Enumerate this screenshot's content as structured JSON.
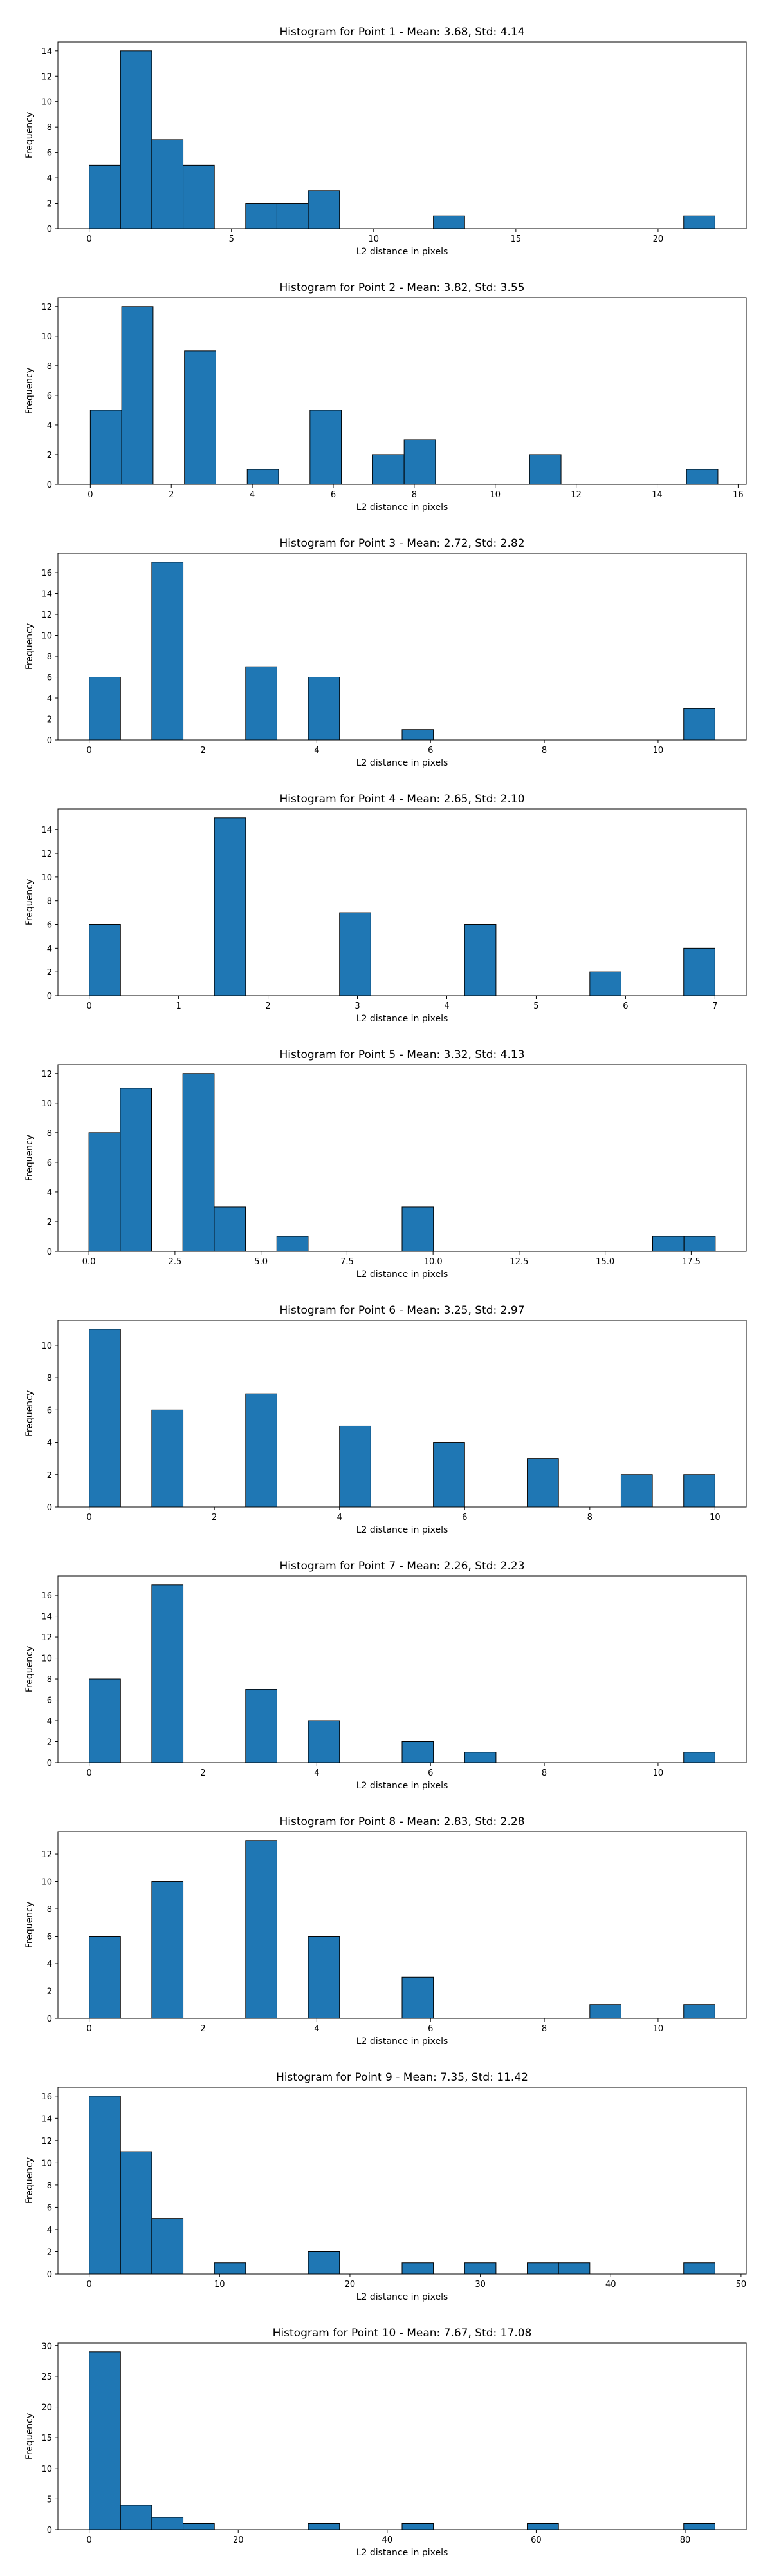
{
  "figure": {
    "background": "#ffffff",
    "bar_color": "#1f77b4",
    "edge_color": "#000000"
  },
  "chart_data": [
    {
      "type": "bar",
      "title": "Histogram for Point 1 - Mean: 3.68, Std: 4.14",
      "xlabel": "L2 distance in pixels",
      "ylabel": "Frequency",
      "xlim": [
        -1.1,
        23.1
      ],
      "ylim": [
        0,
        14.7
      ],
      "xticks": [
        0,
        5,
        10,
        15,
        20
      ],
      "xticklabels": [
        "0",
        "5",
        "10",
        "15",
        "20"
      ],
      "yticks": [
        0,
        2,
        4,
        6,
        8,
        10,
        12,
        14
      ],
      "yticklabels": [
        "0",
        "2",
        "4",
        "6",
        "8",
        "10",
        "12",
        "14"
      ],
      "bins": [
        {
          "x0": 0,
          "x1": 1.1,
          "count": 5
        },
        {
          "x0": 1.1,
          "x1": 2.2,
          "count": 14
        },
        {
          "x0": 2.2,
          "x1": 3.3,
          "count": 7
        },
        {
          "x0": 3.3,
          "x1": 4.4,
          "count": 5
        },
        {
          "x0": 5.5,
          "x1": 6.6,
          "count": 2
        },
        {
          "x0": 6.6,
          "x1": 7.7,
          "count": 2
        },
        {
          "x0": 7.7,
          "x1": 8.8,
          "count": 3
        },
        {
          "x0": 12.1,
          "x1": 13.2,
          "count": 1
        },
        {
          "x0": 20.9,
          "x1": 22.0,
          "count": 1
        }
      ]
    },
    {
      "type": "bar",
      "title": "Histogram for Point 2 - Mean: 3.82, Std: 3.55",
      "xlabel": "L2 distance in pixels",
      "ylabel": "Frequency",
      "xlim": [
        -0.8,
        16.2
      ],
      "ylim": [
        0,
        12.6
      ],
      "xticks": [
        0,
        2,
        4,
        6,
        8,
        10,
        12,
        14,
        16
      ],
      "xticklabels": [
        "0",
        "2",
        "4",
        "6",
        "8",
        "10",
        "12",
        "14",
        "16"
      ],
      "yticks": [
        0,
        2,
        4,
        6,
        8,
        10,
        12
      ],
      "yticklabels": [
        "0",
        "2",
        "4",
        "6",
        "8",
        "10",
        "12"
      ],
      "bins": [
        {
          "x0": 0,
          "x1": 0.775,
          "count": 5
        },
        {
          "x0": 0.775,
          "x1": 1.55,
          "count": 12
        },
        {
          "x0": 2.325,
          "x1": 3.1,
          "count": 9
        },
        {
          "x0": 3.875,
          "x1": 4.65,
          "count": 1
        },
        {
          "x0": 5.425,
          "x1": 6.2,
          "count": 5
        },
        {
          "x0": 6.975,
          "x1": 7.75,
          "count": 2
        },
        {
          "x0": 7.75,
          "x1": 8.525,
          "count": 3
        },
        {
          "x0": 10.85,
          "x1": 11.625,
          "count": 2
        },
        {
          "x0": 14.725,
          "x1": 15.5,
          "count": 1
        }
      ]
    },
    {
      "type": "bar",
      "title": "Histogram for Point 3 - Mean: 2.72, Std: 2.82",
      "xlabel": "L2 distance in pixels",
      "ylabel": "Frequency",
      "xlim": [
        -0.55,
        11.55
      ],
      "ylim": [
        0,
        17.85
      ],
      "xticks": [
        0,
        2,
        4,
        6,
        8,
        10
      ],
      "xticklabels": [
        "0",
        "2",
        "4",
        "6",
        "8",
        "10"
      ],
      "yticks": [
        0,
        2,
        4,
        6,
        8,
        10,
        12,
        14,
        16
      ],
      "yticklabels": [
        "0",
        "2",
        "4",
        "6",
        "8",
        "10",
        "12",
        "14",
        "16"
      ],
      "bins": [
        {
          "x0": 0,
          "x1": 0.55,
          "count": 6
        },
        {
          "x0": 1.1,
          "x1": 1.65,
          "count": 17
        },
        {
          "x0": 2.75,
          "x1": 3.3,
          "count": 7
        },
        {
          "x0": 3.85,
          "x1": 4.4,
          "count": 6
        },
        {
          "x0": 5.5,
          "x1": 6.05,
          "count": 1
        },
        {
          "x0": 10.45,
          "x1": 11.0,
          "count": 3
        }
      ]
    },
    {
      "type": "bar",
      "title": "Histogram for Point 4 - Mean: 2.65, Std: 2.10",
      "xlabel": "L2 distance in pixels",
      "ylabel": "Frequency",
      "xlim": [
        -0.35,
        7.35
      ],
      "ylim": [
        0,
        15.75
      ],
      "xticks": [
        0,
        1,
        2,
        3,
        4,
        5,
        6,
        7
      ],
      "xticklabels": [
        "0",
        "1",
        "2",
        "3",
        "4",
        "5",
        "6",
        "7"
      ],
      "yticks": [
        0,
        2,
        4,
        6,
        8,
        10,
        12,
        14
      ],
      "yticklabels": [
        "0",
        "2",
        "4",
        "6",
        "8",
        "10",
        "12",
        "14"
      ],
      "bins": [
        {
          "x0": 0,
          "x1": 0.35,
          "count": 6
        },
        {
          "x0": 1.4,
          "x1": 1.75,
          "count": 15
        },
        {
          "x0": 2.8,
          "x1": 3.15,
          "count": 7
        },
        {
          "x0": 4.2,
          "x1": 4.55,
          "count": 6
        },
        {
          "x0": 5.6,
          "x1": 5.95,
          "count": 2
        },
        {
          "x0": 6.65,
          "x1": 7.0,
          "count": 4
        }
      ]
    },
    {
      "type": "bar",
      "title": "Histogram for Point 5 - Mean: 3.32, Std: 4.13",
      "xlabel": "L2 distance in pixels",
      "ylabel": "Frequency",
      "xlim": [
        -0.9,
        19.1
      ],
      "ylim": [
        0,
        12.6
      ],
      "xticks": [
        0.0,
        2.5,
        5.0,
        7.5,
        10.0,
        12.5,
        15.0,
        17.5
      ],
      "xticklabels": [
        "0.0",
        "2.5",
        "5.0",
        "7.5",
        "10.0",
        "12.5",
        "15.0",
        "17.5"
      ],
      "yticks": [
        0,
        2,
        4,
        6,
        8,
        10,
        12
      ],
      "yticklabels": [
        "0",
        "2",
        "4",
        "6",
        "8",
        "10",
        "12"
      ],
      "bins": [
        {
          "x0": 0,
          "x1": 0.91,
          "count": 8
        },
        {
          "x0": 0.91,
          "x1": 1.82,
          "count": 11
        },
        {
          "x0": 2.73,
          "x1": 3.64,
          "count": 12
        },
        {
          "x0": 3.64,
          "x1": 4.55,
          "count": 3
        },
        {
          "x0": 5.46,
          "x1": 6.37,
          "count": 1
        },
        {
          "x0": 9.1,
          "x1": 10.01,
          "count": 3
        },
        {
          "x0": 16.38,
          "x1": 17.29,
          "count": 1
        },
        {
          "x0": 17.29,
          "x1": 18.2,
          "count": 1
        }
      ]
    },
    {
      "type": "bar",
      "title": "Histogram for Point 6 - Mean: 3.25, Std: 2.97",
      "xlabel": "L2 distance in pixels",
      "ylabel": "Frequency",
      "xlim": [
        -0.5,
        10.5
      ],
      "ylim": [
        0,
        11.55
      ],
      "xticks": [
        0,
        2,
        4,
        6,
        8,
        10
      ],
      "xticklabels": [
        "0",
        "2",
        "4",
        "6",
        "8",
        "10"
      ],
      "yticks": [
        0,
        2,
        4,
        6,
        8,
        10
      ],
      "yticklabels": [
        "0",
        "2",
        "4",
        "6",
        "8",
        "10"
      ],
      "bins": [
        {
          "x0": 0,
          "x1": 0.5,
          "count": 11
        },
        {
          "x0": 1.0,
          "x1": 1.5,
          "count": 6
        },
        {
          "x0": 2.5,
          "x1": 3.0,
          "count": 7
        },
        {
          "x0": 4.0,
          "x1": 4.5,
          "count": 5
        },
        {
          "x0": 5.5,
          "x1": 6.0,
          "count": 4
        },
        {
          "x0": 7.0,
          "x1": 7.5,
          "count": 3
        },
        {
          "x0": 8.5,
          "x1": 9.0,
          "count": 2
        },
        {
          "x0": 9.5,
          "x1": 10.0,
          "count": 2
        }
      ]
    },
    {
      "type": "bar",
      "title": "Histogram for Point 7 - Mean: 2.26, Std: 2.23",
      "xlabel": "L2 distance in pixels",
      "ylabel": "Frequency",
      "xlim": [
        -0.55,
        11.55
      ],
      "ylim": [
        0,
        17.85
      ],
      "xticks": [
        0,
        2,
        4,
        6,
        8,
        10
      ],
      "xticklabels": [
        "0",
        "2",
        "4",
        "6",
        "8",
        "10"
      ],
      "yticks": [
        0,
        2,
        4,
        6,
        8,
        10,
        12,
        14,
        16
      ],
      "yticklabels": [
        "0",
        "2",
        "4",
        "6",
        "8",
        "10",
        "12",
        "14",
        "16"
      ],
      "bins": [
        {
          "x0": 0,
          "x1": 0.55,
          "count": 8
        },
        {
          "x0": 1.1,
          "x1": 1.65,
          "count": 17
        },
        {
          "x0": 2.75,
          "x1": 3.3,
          "count": 7
        },
        {
          "x0": 3.85,
          "x1": 4.4,
          "count": 4
        },
        {
          "x0": 5.5,
          "x1": 6.05,
          "count": 2
        },
        {
          "x0": 6.6,
          "x1": 7.15,
          "count": 1
        },
        {
          "x0": 10.45,
          "x1": 11.0,
          "count": 1
        }
      ]
    },
    {
      "type": "bar",
      "title": "Histogram for Point 8 - Mean: 2.83, Std: 2.28",
      "xlabel": "L2 distance in pixels",
      "ylabel": "Frequency",
      "xlim": [
        -0.55,
        11.55
      ],
      "ylim": [
        0,
        13.65
      ],
      "xticks": [
        0,
        2,
        4,
        6,
        8,
        10
      ],
      "xticklabels": [
        "0",
        "2",
        "4",
        "6",
        "8",
        "10"
      ],
      "yticks": [
        0,
        2,
        4,
        6,
        8,
        10,
        12
      ],
      "yticklabels": [
        "0",
        "2",
        "4",
        "6",
        "8",
        "10",
        "12"
      ],
      "bins": [
        {
          "x0": 0,
          "x1": 0.55,
          "count": 6
        },
        {
          "x0": 1.1,
          "x1": 1.65,
          "count": 10
        },
        {
          "x0": 2.75,
          "x1": 3.3,
          "count": 13
        },
        {
          "x0": 3.85,
          "x1": 4.4,
          "count": 6
        },
        {
          "x0": 5.5,
          "x1": 6.05,
          "count": 3
        },
        {
          "x0": 8.8,
          "x1": 9.35,
          "count": 1
        },
        {
          "x0": 10.45,
          "x1": 11.0,
          "count": 1
        }
      ]
    },
    {
      "type": "bar",
      "title": "Histogram for Point 9 - Mean: 7.35, Std: 11.42",
      "xlabel": "L2 distance in pixels",
      "ylabel": "Frequency",
      "xlim": [
        -2.4,
        50.4
      ],
      "ylim": [
        0,
        16.8
      ],
      "xticks": [
        0,
        10,
        20,
        30,
        40,
        50
      ],
      "xticklabels": [
        "0",
        "10",
        "20",
        "30",
        "40",
        "50"
      ],
      "yticks": [
        0,
        2,
        4,
        6,
        8,
        10,
        12,
        14,
        16
      ],
      "yticklabels": [
        "0",
        "2",
        "4",
        "6",
        "8",
        "10",
        "12",
        "14",
        "16"
      ],
      "bins": [
        {
          "x0": 0,
          "x1": 2.4,
          "count": 16
        },
        {
          "x0": 2.4,
          "x1": 4.8,
          "count": 11
        },
        {
          "x0": 4.8,
          "x1": 7.2,
          "count": 5
        },
        {
          "x0": 9.6,
          "x1": 12.0,
          "count": 1
        },
        {
          "x0": 16.8,
          "x1": 19.2,
          "count": 2
        },
        {
          "x0": 24.0,
          "x1": 26.4,
          "count": 1
        },
        {
          "x0": 28.8,
          "x1": 31.2,
          "count": 1
        },
        {
          "x0": 33.6,
          "x1": 36.0,
          "count": 1
        },
        {
          "x0": 36.0,
          "x1": 38.4,
          "count": 1
        },
        {
          "x0": 45.6,
          "x1": 48.0,
          "count": 1
        }
      ]
    },
    {
      "type": "bar",
      "title": "Histogram for Point 10 - Mean: 7.67, Std: 17.08",
      "xlabel": "L2 distance in pixels",
      "ylabel": "Frequency",
      "xlim": [
        -4.2,
        88.2
      ],
      "ylim": [
        0,
        30.45
      ],
      "xticks": [
        0,
        20,
        40,
        60,
        80
      ],
      "xticklabels": [
        "0",
        "20",
        "40",
        "60",
        "80"
      ],
      "yticks": [
        0,
        5,
        10,
        15,
        20,
        25,
        30
      ],
      "yticklabels": [
        "0",
        "5",
        "10",
        "15",
        "20",
        "25",
        "30"
      ],
      "bins": [
        {
          "x0": 0,
          "x1": 4.2,
          "count": 29
        },
        {
          "x0": 4.2,
          "x1": 8.4,
          "count": 4
        },
        {
          "x0": 8.4,
          "x1": 12.6,
          "count": 2
        },
        {
          "x0": 12.6,
          "x1": 16.8,
          "count": 1
        },
        {
          "x0": 29.4,
          "x1": 33.6,
          "count": 1
        },
        {
          "x0": 42.0,
          "x1": 46.2,
          "count": 1
        },
        {
          "x0": 58.8,
          "x1": 63.0,
          "count": 1
        },
        {
          "x0": 79.8,
          "x1": 84.0,
          "count": 1
        }
      ]
    }
  ]
}
